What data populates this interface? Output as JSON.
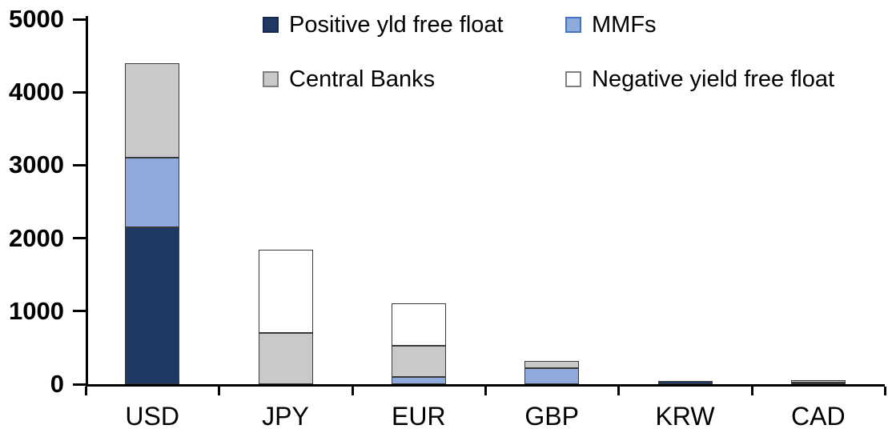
{
  "chart_data": {
    "type": "bar",
    "stacked": true,
    "title": "",
    "xlabel": "",
    "ylabel": "",
    "categories": [
      "USD",
      "JPY",
      "EUR",
      "GBP",
      "KRW",
      "CAD"
    ],
    "series": [
      {
        "name": "Positive yld free float",
        "color": "#1F3864",
        "swatch_border": "#16294a",
        "values": [
          2150,
          0,
          0,
          0,
          40,
          25
        ]
      },
      {
        "name": "MMFs",
        "color": "#8EA9DB",
        "swatch_border": "#4472C4",
        "values": [
          950,
          0,
          100,
          220,
          0,
          0
        ]
      },
      {
        "name": "Central Banks",
        "color": "#C9C9C9",
        "swatch_border": "#7F7F7F",
        "values": [
          1300,
          700,
          430,
          100,
          0,
          30
        ]
      },
      {
        "name": "Negative yield free float",
        "color": "#FFFFFF",
        "swatch_border": "#7F7F7F",
        "values": [
          0,
          1140,
          580,
          0,
          0,
          0
        ]
      }
    ],
    "totals": {
      "USD": 4400,
      "JPY": 1840,
      "EUR": 1110,
      "GBP": 320,
      "KRW": 40,
      "CAD": 55
    },
    "ylim": [
      0,
      5000
    ],
    "y_ticks": [
      "0",
      "1000",
      "2000",
      "3000",
      "4000",
      "5000"
    ],
    "grid": false,
    "legend_position": "top",
    "legend_rows": [
      [
        "Positive yld free float",
        "MMFs"
      ],
      [
        "Central Banks",
        "Negative yield free float"
      ]
    ]
  }
}
